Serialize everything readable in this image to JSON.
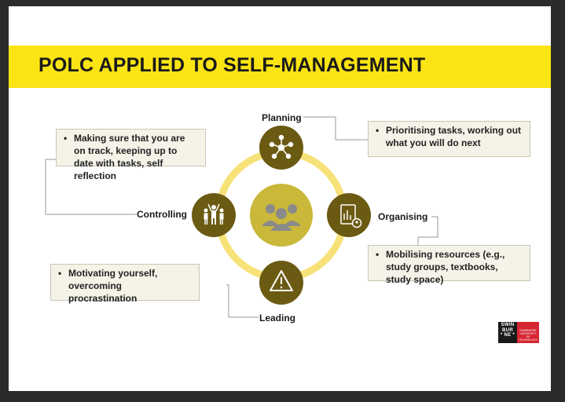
{
  "title": "POLC APPLIED TO SELF-MANAGEMENT",
  "colors": {
    "accent_yellow": "#fbe414",
    "ring_yellow": "#f7e27a",
    "node_olive": "#6b5a12",
    "center_olive": "#c9b83a",
    "callout_bg": "#f5f3e8"
  },
  "nodes": [
    {
      "id": "planning",
      "label": "Planning",
      "icon": "network-hub-icon"
    },
    {
      "id": "organising",
      "label": "Organising",
      "icon": "document-chart-icon"
    },
    {
      "id": "leading",
      "label": "Leading",
      "icon": "warning-triangle-icon"
    },
    {
      "id": "controlling",
      "label": "Controlling",
      "icon": "team-people-icon"
    }
  ],
  "center": {
    "icon": "group-people-icon"
  },
  "callouts": {
    "planning": "Prioritising tasks, working out what you will do next",
    "organising": "Mobilising resources (e.g., study groups, textbooks, study space)",
    "leading": "Motivating yourself, overcoming procrastination",
    "controlling": "Making sure that you are on track, keeping up to date with tasks, self reflection"
  },
  "bullet": "•",
  "logo": {
    "left_lines": [
      "SWIN",
      "BUR",
      "* NE *"
    ],
    "right_lines": [
      "SWINBURNE",
      "UNIVERSITY OF",
      "TECHNOLOGY"
    ]
  }
}
